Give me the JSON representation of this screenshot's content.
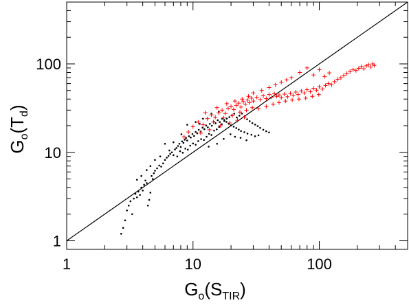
{
  "chart_data": {
    "type": "scatter",
    "title": "",
    "x_scale": "log",
    "y_scale": "log",
    "xlim": [
      1,
      500
    ],
    "ylim": [
      0.8,
      500
    ],
    "grid": false,
    "xlabel": {
      "main": "G",
      "sub": "o",
      "paren_main": "S",
      "paren_sub": "TIR"
    },
    "ylabel": {
      "main": "G",
      "sub": "o",
      "paren_main": "T",
      "paren_sub": "d"
    },
    "x_ticks": [
      {
        "value": 1,
        "label": "1"
      },
      {
        "value": 10,
        "label": "10"
      },
      {
        "value": 100,
        "label": "100"
      }
    ],
    "y_ticks": [
      {
        "value": 1,
        "label": "1"
      },
      {
        "value": 10,
        "label": "10"
      },
      {
        "value": 100,
        "label": "100"
      }
    ],
    "reference_line": {
      "type": "one-to-one",
      "color": "#000000",
      "points": [
        [
          1,
          1
        ],
        [
          500,
          500
        ]
      ]
    },
    "series": [
      {
        "marker": "dot",
        "color": "#000000",
        "points": [
          [
            2.7,
            1.2
          ],
          [
            2.8,
            1.4
          ],
          [
            2.9,
            1.7
          ],
          [
            3.0,
            2.2
          ],
          [
            3.1,
            2.5
          ],
          [
            3.2,
            2.8
          ],
          [
            3.3,
            2.0
          ],
          [
            3.4,
            3.0
          ],
          [
            3.5,
            3.4
          ],
          [
            3.6,
            3.1
          ],
          [
            3.7,
            3.6
          ],
          [
            3.8,
            3.3
          ],
          [
            3.9,
            4.0
          ],
          [
            4.0,
            3.7
          ],
          [
            4.1,
            4.3
          ],
          [
            4.2,
            4.8
          ],
          [
            4.3,
            4.5
          ],
          [
            4.4,
            2.5
          ],
          [
            4.5,
            2.9
          ],
          [
            4.6,
            3.5
          ],
          [
            4.7,
            5.4
          ],
          [
            4.8,
            5.0
          ],
          [
            4.9,
            5.8
          ],
          [
            5.0,
            6.2
          ],
          [
            5.2,
            6.6
          ],
          [
            5.4,
            7.1
          ],
          [
            5.6,
            6.9
          ],
          [
            5.8,
            7.5
          ],
          [
            6.0,
            8.2
          ],
          [
            6.2,
            8.7
          ],
          [
            6.4,
            9.1
          ],
          [
            6.6,
            9.6
          ],
          [
            6.8,
            10.0
          ],
          [
            7.0,
            9.3
          ],
          [
            7.2,
            10.8
          ],
          [
            7.4,
            11.2
          ],
          [
            7.6,
            11.8
          ],
          [
            7.8,
            12.5
          ],
          [
            8.0,
            11.5
          ],
          [
            8.2,
            13.3
          ],
          [
            8.4,
            12.8
          ],
          [
            8.6,
            13.9
          ],
          [
            8.8,
            14.5
          ],
          [
            9.0,
            13.6
          ],
          [
            9.3,
            15.2
          ],
          [
            9.6,
            14.7
          ],
          [
            9.9,
            16.1
          ],
          [
            10.2,
            15.3
          ],
          [
            10.5,
            17.0
          ],
          [
            10.8,
            16.4
          ],
          [
            11.1,
            18.0
          ],
          [
            11.5,
            17.2
          ],
          [
            11.9,
            19.0
          ],
          [
            12.3,
            18.3
          ],
          [
            12.7,
            20.1
          ],
          [
            13.1,
            19.2
          ],
          [
            13.6,
            21.0
          ],
          [
            14.1,
            20.0
          ],
          [
            14.6,
            22.2
          ],
          [
            15.1,
            21.3
          ],
          [
            15.7,
            23.1
          ],
          [
            16.3,
            22.0
          ],
          [
            17.0,
            24.0
          ],
          [
            17.7,
            23.2
          ],
          [
            18.4,
            22.1
          ],
          [
            19.2,
            21.0
          ],
          [
            20.0,
            20.2
          ],
          [
            21.0,
            19.5
          ],
          [
            22.0,
            18.8
          ],
          [
            23.0,
            18.1
          ],
          [
            24.0,
            17.4
          ],
          [
            25.5,
            16.9
          ],
          [
            27.0,
            16.3
          ],
          [
            29.0,
            15.8
          ],
          [
            31.0,
            15.2
          ],
          [
            33.0,
            15.6
          ],
          [
            7.5,
            9.0
          ],
          [
            7.9,
            10.3
          ],
          [
            8.3,
            9.9
          ],
          [
            8.7,
            11.0
          ],
          [
            9.1,
            10.7
          ],
          [
            9.5,
            11.9
          ],
          [
            10.0,
            12.6
          ],
          [
            10.5,
            12.2
          ],
          [
            11.0,
            13.4
          ],
          [
            11.6,
            14.1
          ],
          [
            12.2,
            13.8
          ],
          [
            12.8,
            15.0
          ],
          [
            13.4,
            16.2
          ],
          [
            14.0,
            15.7
          ],
          [
            14.7,
            17.6
          ],
          [
            15.4,
            18.2
          ],
          [
            16.1,
            19.4
          ],
          [
            16.9,
            20.8
          ],
          [
            17.7,
            22.6
          ],
          [
            18.5,
            24.1
          ],
          [
            19.4,
            25.0
          ],
          [
            20.3,
            26.2
          ],
          [
            21.2,
            27.3
          ],
          [
            22.2,
            24.8
          ],
          [
            23.3,
            26.0
          ],
          [
            24.4,
            27.4
          ],
          [
            25.6,
            25.3
          ],
          [
            26.8,
            23.7
          ],
          [
            28.1,
            22.5
          ],
          [
            29.5,
            21.4
          ],
          [
            31.0,
            20.6
          ],
          [
            32.5,
            19.8
          ],
          [
            34.0,
            18.9
          ],
          [
            36.0,
            18.0
          ],
          [
            38.0,
            17.3
          ],
          [
            40.0,
            16.8
          ],
          [
            9.0,
            20.5
          ],
          [
            10.5,
            22.0
          ],
          [
            12.0,
            24.0
          ],
          [
            14.0,
            27.5
          ],
          [
            16.0,
            29.0
          ],
          [
            6.0,
            12.5
          ],
          [
            6.5,
            10.5
          ],
          [
            7.0,
            13.0
          ],
          [
            5.5,
            9.0
          ],
          [
            5.0,
            8.2
          ],
          [
            4.6,
            7.0
          ],
          [
            4.3,
            6.3
          ],
          [
            3.9,
            5.4
          ],
          [
            3.6,
            4.9
          ],
          [
            8.1,
            16.0
          ],
          [
            11.3,
            21.0
          ],
          [
            13.3,
            11.6
          ],
          [
            15.5,
            12.5
          ],
          [
            17.5,
            14.2
          ],
          [
            19.8,
            16.0
          ],
          [
            21.5,
            15.0
          ],
          [
            23.8,
            14.6
          ],
          [
            26.5,
            13.7
          ]
        ]
      },
      {
        "marker": "plus",
        "color": "#ff0000",
        "points": [
          [
            8.5,
            15.0
          ],
          [
            9.2,
            17.0
          ],
          [
            10.0,
            19.5
          ],
          [
            11.0,
            22.0
          ],
          [
            12.0,
            20.5
          ],
          [
            13.0,
            24.0
          ],
          [
            14.0,
            26.5
          ],
          [
            15.0,
            25.0
          ],
          [
            16.0,
            28.0
          ],
          [
            17.0,
            30.0
          ],
          [
            18.0,
            27.5
          ],
          [
            19.0,
            31.5
          ],
          [
            20.0,
            33.0
          ],
          [
            21.0,
            30.5
          ],
          [
            22.0,
            34.0
          ],
          [
            23.0,
            36.0
          ],
          [
            24.0,
            32.5
          ],
          [
            25.0,
            37.5
          ],
          [
            26.0,
            35.0
          ],
          [
            27.0,
            39.0
          ],
          [
            28.0,
            36.5
          ],
          [
            29.0,
            41.0
          ],
          [
            30.0,
            38.0
          ],
          [
            32.0,
            42.0
          ],
          [
            34.0,
            39.5
          ],
          [
            36.0,
            43.5
          ],
          [
            38.0,
            40.5
          ],
          [
            40.0,
            45.0
          ],
          [
            42.0,
            42.0
          ],
          [
            44.0,
            46.0
          ],
          [
            46.0,
            43.0
          ],
          [
            48.0,
            44.5
          ],
          [
            50.0,
            41.5
          ],
          [
            53.0,
            45.5
          ],
          [
            56.0,
            42.5
          ],
          [
            59.0,
            46.5
          ],
          [
            62.0,
            44.0
          ],
          [
            65.0,
            48.0
          ],
          [
            68.0,
            45.0
          ],
          [
            72.0,
            49.5
          ],
          [
            76.0,
            47.0
          ],
          [
            80.0,
            51.0
          ],
          [
            85.0,
            48.5
          ],
          [
            90.0,
            53.0
          ],
          [
            95.0,
            50.5
          ],
          [
            100.0,
            55.0
          ],
          [
            106.0,
            52.0
          ],
          [
            112.0,
            57.0
          ],
          [
            118.0,
            60.0
          ],
          [
            125.0,
            58.0
          ],
          [
            132.0,
            63.0
          ],
          [
            140.0,
            67.0
          ],
          [
            148.0,
            70.0
          ],
          [
            156.0,
            74.0
          ],
          [
            165.0,
            78.0
          ],
          [
            175.0,
            82.0
          ],
          [
            185.0,
            86.0
          ],
          [
            195.0,
            84.0
          ],
          [
            205.0,
            89.0
          ],
          [
            215.0,
            93.0
          ],
          [
            225.0,
            88.0
          ],
          [
            235.0,
            95.0
          ],
          [
            245.0,
            98.0
          ],
          [
            255.0,
            92.0
          ],
          [
            265.0,
            100.0
          ],
          [
            272.0,
            96.0
          ],
          [
            60.0,
            70.0
          ],
          [
            70.0,
            80.0
          ],
          [
            80.0,
            90.0
          ],
          [
            90.0,
            75.0
          ],
          [
            100.0,
            86.0
          ],
          [
            110.0,
            72.0
          ],
          [
            120.0,
            79.0
          ],
          [
            50.0,
            62.0
          ],
          [
            55.0,
            66.0
          ],
          [
            45.0,
            58.0
          ],
          [
            40.0,
            54.0
          ],
          [
            35.0,
            50.0
          ],
          [
            30.0,
            47.0
          ],
          [
            33.0,
            31.0
          ],
          [
            38.0,
            33.0
          ],
          [
            43.0,
            35.0
          ],
          [
            48.0,
            36.5
          ],
          [
            54.0,
            38.0
          ],
          [
            61.0,
            39.0
          ],
          [
            69.0,
            40.0
          ],
          [
            78.0,
            41.0
          ],
          [
            88.0,
            43.0
          ],
          [
            99.0,
            45.0
          ],
          [
            12.5,
            28.0
          ],
          [
            15.5,
            32.0
          ],
          [
            18.5,
            35.5
          ],
          [
            21.5,
            38.0
          ],
          [
            24.5,
            40.0
          ],
          [
            27.5,
            43.0
          ],
          [
            14.5,
            22.0
          ],
          [
            17.5,
            24.5
          ],
          [
            20.5,
            26.0
          ],
          [
            23.5,
            28.5
          ],
          [
            26.5,
            30.0
          ],
          [
            29.5,
            32.0
          ],
          [
            11.5,
            16.5
          ],
          [
            13.5,
            18.0
          ],
          [
            16.5,
            20.0
          ],
          [
            19.5,
            21.5
          ],
          [
            22.5,
            23.0
          ],
          [
            25.5,
            25.0
          ]
        ]
      }
    ]
  }
}
